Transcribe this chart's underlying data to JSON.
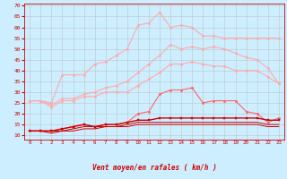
{
  "x": [
    0,
    1,
    2,
    3,
    4,
    5,
    6,
    7,
    8,
    9,
    10,
    11,
    12,
    13,
    14,
    15,
    16,
    17,
    18,
    19,
    20,
    21,
    22,
    23
  ],
  "series": [
    {
      "name": "rafales_top",
      "color": "#ffaaaa",
      "linewidth": 0.8,
      "marker": "o",
      "markersize": 1.8,
      "values": [
        26,
        26,
        25,
        38,
        38,
        38,
        43,
        44,
        47,
        50,
        61,
        62,
        67,
        60,
        61,
        60,
        56,
        56,
        55,
        55,
        55,
        55,
        55,
        55
      ]
    },
    {
      "name": "rafales_mid",
      "color": "#ffaaaa",
      "linewidth": 0.8,
      "marker": "o",
      "markersize": 1.8,
      "values": [
        26,
        26,
        24,
        27,
        27,
        29,
        30,
        32,
        33,
        35,
        39,
        43,
        47,
        52,
        50,
        51,
        50,
        51,
        50,
        48,
        46,
        45,
        41,
        34
      ]
    },
    {
      "name": "rafales_low",
      "color": "#ffaaaa",
      "linewidth": 0.8,
      "marker": "o",
      "markersize": 1.8,
      "values": [
        26,
        26,
        23,
        26,
        26,
        28,
        28,
        30,
        30,
        30,
        33,
        36,
        39,
        43,
        43,
        44,
        43,
        42,
        42,
        40,
        40,
        40,
        37,
        34
      ]
    },
    {
      "name": "vent_upper",
      "color": "#ff6666",
      "linewidth": 0.8,
      "marker": "o",
      "markersize": 1.8,
      "values": [
        12,
        12,
        12,
        13,
        14,
        15,
        14,
        15,
        15,
        16,
        20,
        21,
        29,
        31,
        31,
        32,
        25,
        26,
        26,
        26,
        21,
        20,
        16,
        18
      ]
    },
    {
      "name": "vent_main",
      "color": "#cc0000",
      "linewidth": 1.0,
      "marker": "s",
      "markersize": 1.8,
      "values": [
        12,
        12,
        12,
        13,
        14,
        15,
        14,
        15,
        15,
        16,
        17,
        17,
        18,
        18,
        18,
        18,
        18,
        18,
        18,
        18,
        18,
        18,
        17,
        17
      ]
    },
    {
      "name": "vent_low1",
      "color": "#cc0000",
      "linewidth": 0.7,
      "marker": null,
      "markersize": 0,
      "values": [
        12,
        12,
        12,
        12,
        13,
        14,
        14,
        14,
        14,
        15,
        16,
        16,
        16,
        16,
        16,
        16,
        16,
        16,
        16,
        16,
        16,
        16,
        15,
        15
      ]
    },
    {
      "name": "vent_low2",
      "color": "#cc0000",
      "linewidth": 0.7,
      "marker": null,
      "markersize": 0,
      "values": [
        12,
        12,
        11,
        12,
        12,
        13,
        13,
        14,
        14,
        14,
        15,
        15,
        15,
        15,
        15,
        15,
        15,
        15,
        15,
        15,
        15,
        15,
        14,
        14
      ]
    }
  ],
  "ylim": [
    8,
    71
  ],
  "yticks": [
    10,
    15,
    20,
    25,
    30,
    35,
    40,
    45,
    50,
    55,
    60,
    65,
    70
  ],
  "xlim": [
    -0.5,
    23.5
  ],
  "xticks": [
    0,
    1,
    2,
    3,
    4,
    5,
    6,
    7,
    8,
    9,
    10,
    11,
    12,
    13,
    14,
    15,
    16,
    17,
    18,
    19,
    20,
    21,
    22,
    23
  ],
  "xlabel": "Vent moyen/en rafales ( km/h )",
  "bg_color": "#cceeff",
  "grid_color": "#bbbbbb",
  "tick_color": "#cc0000",
  "label_color": "#cc0000",
  "spine_color": "#cc0000"
}
